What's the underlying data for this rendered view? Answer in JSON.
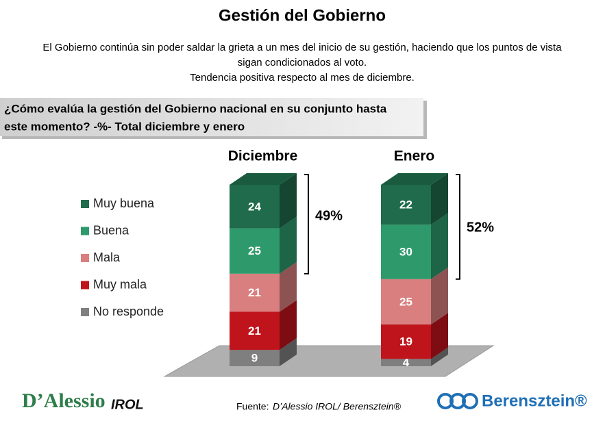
{
  "chart_data": {
    "type": "stacked-bar-3d",
    "title": "Gestión del Gobierno",
    "subtitle": [
      "El Gobierno continúa sin poder saldar la grieta a un mes del inicio de su gestión, haciendo que los puntos de vista",
      "sigan condicionados al voto.",
      "Tendencia positiva respecto al mes de diciembre."
    ],
    "question": [
      "¿Cómo evalúa la gestión del Gobierno nacional en su conjunto hasta",
      "este momento? -%- Total diciembre y enero"
    ],
    "categories": [
      "Diciembre",
      "Enero"
    ],
    "series": [
      {
        "name": "Muy buena",
        "color": "#1f6b4b",
        "values": [
          24,
          22
        ]
      },
      {
        "name": "Buena",
        "color": "#2e9a6b",
        "values": [
          25,
          30
        ]
      },
      {
        "name": "Mala",
        "color": "#d97f7f",
        "values": [
          21,
          25
        ]
      },
      {
        "name": "Muy mala",
        "color": "#c0141c",
        "values": [
          21,
          19
        ]
      },
      {
        "name": "No responde",
        "color": "#7f7f7f",
        "values": [
          9,
          4
        ]
      }
    ],
    "brackets": [
      "49%",
      "52%"
    ],
    "footer": {
      "source_label": "Fuente:",
      "source": "D’Alessio IROL/ Berensztein®",
      "logo_left": "D’Alessio",
      "logo_left_suffix": "IROL",
      "logo_right": "Berensztein®"
    }
  }
}
